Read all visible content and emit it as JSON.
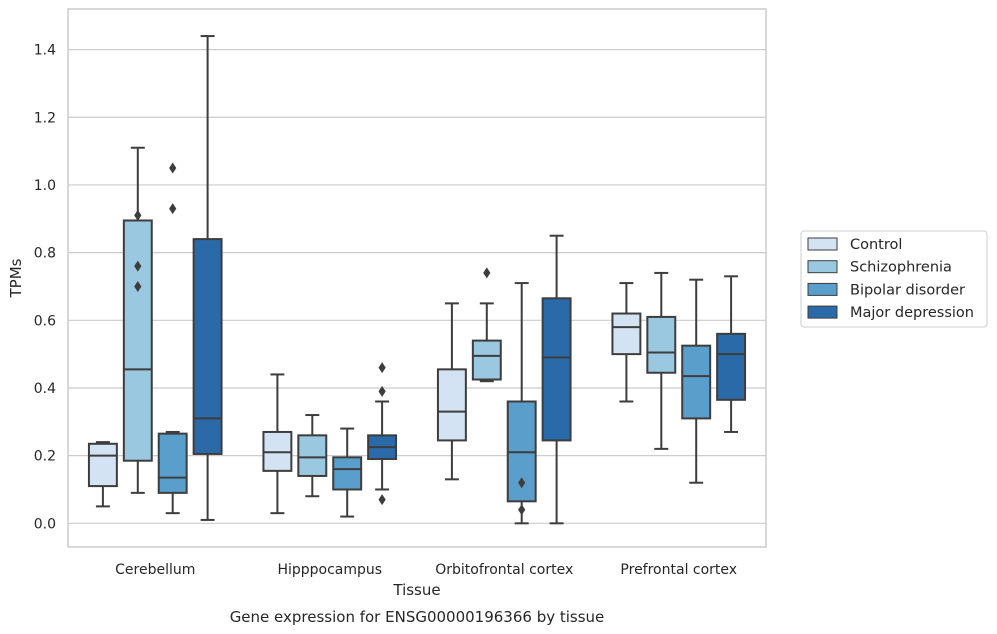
{
  "chart_data": {
    "type": "boxplot",
    "title": "",
    "caption": "Gene expression for ENSG00000196366 by tissue",
    "xlabel": "Tissue",
    "ylabel": "TPMs",
    "ylim": [
      -0.07,
      1.52
    ],
    "yticks": [
      0.0,
      0.2,
      0.4,
      0.6,
      0.8,
      1.0,
      1.2,
      1.4
    ],
    "ytick_labels": [
      "0.0",
      "0.2",
      "0.4",
      "0.6",
      "0.8",
      "1.0",
      "1.2",
      "1.4"
    ],
    "grid": "horizontal",
    "legend_position": "outside-right",
    "categories": [
      "Cerebellum",
      "Hipppocampus",
      "Orbitofrontal cortex",
      "Prefrontal cortex"
    ],
    "series": [
      {
        "name": "Control",
        "color": "#d3e3f3",
        "boxes": [
          {
            "whislo": 0.05,
            "q1": 0.11,
            "med": 0.2,
            "q3": 0.235,
            "whishi": 0.24,
            "fliers": []
          },
          {
            "whislo": 0.03,
            "q1": 0.155,
            "med": 0.21,
            "q3": 0.27,
            "whishi": 0.44,
            "fliers": []
          },
          {
            "whislo": 0.13,
            "q1": 0.245,
            "med": 0.33,
            "q3": 0.455,
            "whishi": 0.65,
            "fliers": []
          },
          {
            "whislo": 0.36,
            "q1": 0.5,
            "med": 0.58,
            "q3": 0.62,
            "whishi": 0.71,
            "fliers": []
          }
        ]
      },
      {
        "name": "Schizophrenia",
        "color": "#9ac8e0",
        "boxes": [
          {
            "whislo": 0.09,
            "q1": 0.185,
            "med": 0.455,
            "q3": 0.895,
            "whishi": 1.11,
            "fliers": [
              0.7,
              0.76,
              0.91
            ]
          },
          {
            "whislo": 0.08,
            "q1": 0.14,
            "med": 0.195,
            "q3": 0.26,
            "whishi": 0.32,
            "fliers": []
          },
          {
            "whislo": 0.42,
            "q1": 0.425,
            "med": 0.495,
            "q3": 0.54,
            "whishi": 0.65,
            "fliers": [
              0.74
            ]
          },
          {
            "whislo": 0.22,
            "q1": 0.445,
            "med": 0.505,
            "q3": 0.61,
            "whishi": 0.74,
            "fliers": []
          }
        ]
      },
      {
        "name": "Bipolar disorder",
        "color": "#5a9fcb",
        "boxes": [
          {
            "whislo": 0.03,
            "q1": 0.09,
            "med": 0.135,
            "q3": 0.265,
            "whishi": 0.27,
            "fliers": [
              0.93,
              1.05
            ]
          },
          {
            "whislo": 0.02,
            "q1": 0.1,
            "med": 0.16,
            "q3": 0.195,
            "whishi": 0.28,
            "fliers": []
          },
          {
            "whislo": 0.0,
            "q1": 0.065,
            "med": 0.21,
            "q3": 0.36,
            "whishi": 0.71,
            "fliers": [
              0.04,
              0.12
            ]
          },
          {
            "whislo": 0.12,
            "q1": 0.31,
            "med": 0.435,
            "q3": 0.525,
            "whishi": 0.72,
            "fliers": []
          }
        ]
      },
      {
        "name": "Major depression",
        "color": "#2a6aa8",
        "boxes": [
          {
            "whislo": 0.01,
            "q1": 0.205,
            "med": 0.31,
            "q3": 0.84,
            "whishi": 1.44,
            "fliers": []
          },
          {
            "whislo": 0.1,
            "q1": 0.19,
            "med": 0.225,
            "q3": 0.26,
            "whishi": 0.36,
            "fliers": [
              0.07,
              0.39,
              0.46
            ]
          },
          {
            "whislo": 0.0,
            "q1": 0.245,
            "med": 0.49,
            "q3": 0.665,
            "whishi": 0.85,
            "fliers": []
          },
          {
            "whislo": 0.27,
            "q1": 0.365,
            "med": 0.5,
            "q3": 0.56,
            "whishi": 0.73,
            "fliers": []
          }
        ]
      }
    ]
  }
}
